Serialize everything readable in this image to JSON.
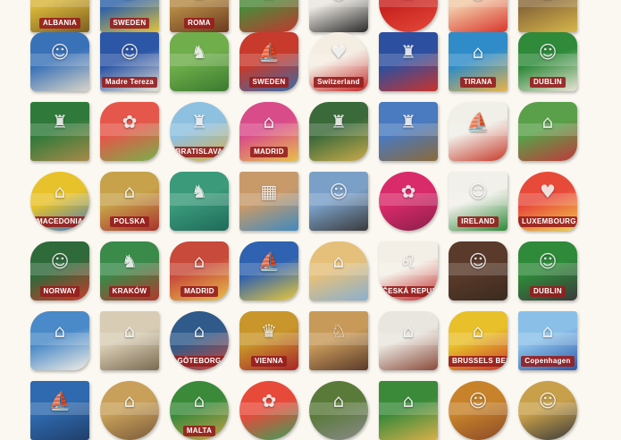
{
  "magnets": [
    {
      "label": "ALBANIA",
      "colors": [
        "#d8b43a",
        "#7a5f20"
      ],
      "shape": "rect",
      "icon": "flag"
    },
    {
      "label": "SWEDEN",
      "colors": [
        "#2e62a8",
        "#e1c33b"
      ],
      "shape": "rect",
      "icon": "castle"
    },
    {
      "label": "ROMA",
      "colors": [
        "#b58a45",
        "#6b3a1f"
      ],
      "shape": "rect",
      "icon": "colosseum"
    },
    {
      "label": "",
      "colors": [
        "#4c8a3a",
        "#c2372f"
      ],
      "shape": "blob",
      "icon": "castle"
    },
    {
      "label": "",
      "colors": [
        "#e9e5df",
        "#2a2a2a"
      ],
      "shape": "fig",
      "icon": "figure"
    },
    {
      "label": "",
      "colors": [
        "#c8221f",
        "#e44b3a"
      ],
      "shape": "round",
      "icon": "flower"
    },
    {
      "label": "",
      "colors": [
        "#f2c9a6",
        "#d9352b"
      ],
      "shape": "fig",
      "icon": "figure"
    },
    {
      "label": "",
      "colors": [
        "#8a6a3a",
        "#d8b64a"
      ],
      "shape": "rect",
      "icon": "building"
    },
    {
      "label": "",
      "colors": [
        "#3a72b8",
        "#d8d4c8"
      ],
      "shape": "fig",
      "icon": "figure"
    },
    {
      "label": "Madre Tereza",
      "colors": [
        "#2c56a6",
        "#e5e0d2"
      ],
      "shape": "rect",
      "icon": "portrait"
    },
    {
      "label": "",
      "colors": [
        "#6fae4a",
        "#3b7a2f"
      ],
      "shape": "fig",
      "icon": "dragon"
    },
    {
      "label": "SWEDEN",
      "colors": [
        "#c73a2c",
        "#3a6ba8"
      ],
      "shape": "blob",
      "icon": "ship"
    },
    {
      "label": "Switzerland",
      "colors": [
        "#f4ede2",
        "#c52b2b"
      ],
      "shape": "heart",
      "icon": "heart"
    },
    {
      "label": "",
      "colors": [
        "#2d4fa0",
        "#c9342c"
      ],
      "shape": "tall",
      "icon": "castle"
    },
    {
      "label": "TIRANA",
      "colors": [
        "#2f8cc8",
        "#e7b34a"
      ],
      "shape": "rect",
      "icon": "building"
    },
    {
      "label": "DUBLIN",
      "colors": [
        "#2f8a3a",
        "#e9e4d6"
      ],
      "shape": "fig",
      "icon": "figure"
    },
    {
      "label": "",
      "colors": [
        "#2f7a3a",
        "#a88a4a"
      ],
      "shape": "rect",
      "icon": "castle"
    },
    {
      "label": "",
      "colors": [
        "#e5574a",
        "#78b04a"
      ],
      "shape": "blob",
      "icon": "flower"
    },
    {
      "label": "BRATISLAVA",
      "colors": [
        "#8ec0e0",
        "#d8b04a"
      ],
      "shape": "round",
      "icon": "castle"
    },
    {
      "label": "MADRID",
      "colors": [
        "#d94c8a",
        "#e7c04a"
      ],
      "shape": "arch",
      "icon": "building"
    },
    {
      "label": "",
      "colors": [
        "#3a6a3a",
        "#c9aa4a"
      ],
      "shape": "blob",
      "icon": "castle"
    },
    {
      "label": "",
      "colors": [
        "#4a7ac0",
        "#8b6a3a"
      ],
      "shape": "tall",
      "icon": "castle"
    },
    {
      "label": "",
      "colors": [
        "#f0efe8",
        "#c83b2c"
      ],
      "shape": "blob",
      "icon": "ship"
    },
    {
      "label": "",
      "colors": [
        "#5aa04a",
        "#c03a3a"
      ],
      "shape": "blob",
      "icon": "building"
    },
    {
      "label": "MACEDONIA",
      "colors": [
        "#e8c22a",
        "#3f7bc0"
      ],
      "shape": "round",
      "icon": "building"
    },
    {
      "label": "POLSKA",
      "colors": [
        "#c7a24a",
        "#a8332c"
      ],
      "shape": "fig",
      "icon": "building"
    },
    {
      "label": "",
      "colors": [
        "#3a9a7a",
        "#1f6a5a"
      ],
      "shape": "fig",
      "icon": "dragon"
    },
    {
      "label": "",
      "colors": [
        "#c89a6a",
        "#3f8ac0"
      ],
      "shape": "rect",
      "icon": "map"
    },
    {
      "label": "",
      "colors": [
        "#7aa0c8",
        "#3a3a3a"
      ],
      "shape": "tall",
      "icon": "figure"
    },
    {
      "label": "",
      "colors": [
        "#d92a6a",
        "#8a1f4a"
      ],
      "shape": "round",
      "icon": "flower"
    },
    {
      "label": "IRELAND",
      "colors": [
        "#f2f0ea",
        "#2f8a3a"
      ],
      "shape": "tall",
      "icon": "figure"
    },
    {
      "label": "LUXEMBOURG",
      "colors": [
        "#e84a3a",
        "#f0d04a"
      ],
      "shape": "heart",
      "icon": "heart"
    },
    {
      "label": "NORWAY",
      "colors": [
        "#2f6a3a",
        "#c83b2c"
      ],
      "shape": "blob",
      "icon": "figure"
    },
    {
      "label": "KRAKÓW",
      "colors": [
        "#3a8a4a",
        "#b03a2c"
      ],
      "shape": "fig",
      "icon": "dragon"
    },
    {
      "label": "MADRID",
      "colors": [
        "#c84a3a",
        "#e7c04a"
      ],
      "shape": "blob",
      "icon": "building"
    },
    {
      "label": "",
      "colors": [
        "#2f62b0",
        "#e8c83a"
      ],
      "shape": "blob",
      "icon": "ship"
    },
    {
      "label": "",
      "colors": [
        "#e5c07a",
        "#8ab0d0"
      ],
      "shape": "arch",
      "icon": "building"
    },
    {
      "label": "ČESKÁ REPUBLIKA",
      "colors": [
        "#f3efe6",
        "#c12b2b"
      ],
      "shape": "shield",
      "icon": "lion"
    },
    {
      "label": "",
      "colors": [
        "#5a3a2a",
        "#3a2a1f"
      ],
      "shape": "fig",
      "icon": "figure"
    },
    {
      "label": "DUBLIN",
      "colors": [
        "#2f8a3a",
        "#3a3a3a"
      ],
      "shape": "fig",
      "icon": "figure"
    },
    {
      "label": "",
      "colors": [
        "#4a8ac8",
        "#f0ede4"
      ],
      "shape": "blob",
      "icon": "building"
    },
    {
      "label": "",
      "colors": [
        "#d8cdb4",
        "#7a6a52"
      ],
      "shape": "rect",
      "icon": "building"
    },
    {
      "label": "GÖTEBORG",
      "colors": [
        "#2f5a8a",
        "#c84a3a"
      ],
      "shape": "round",
      "icon": "building"
    },
    {
      "label": "VIENNA",
      "colors": [
        "#c8962a",
        "#a8242a"
      ],
      "shape": "fig",
      "icon": "crown"
    },
    {
      "label": "",
      "colors": [
        "#c89a5a",
        "#5a3a2a"
      ],
      "shape": "rect",
      "icon": "horse"
    },
    {
      "label": "",
      "colors": [
        "#e9e6df",
        "#8a4a3a"
      ],
      "shape": "fig",
      "icon": "building"
    },
    {
      "label": "BRUSSELS BELGIUM",
      "colors": [
        "#e8c02a",
        "#c83b2c"
      ],
      "shape": "blob",
      "icon": "building"
    },
    {
      "label": "Copenhagen",
      "colors": [
        "#8ac0e8",
        "#2f5aa8"
      ],
      "shape": "rect",
      "icon": "building"
    },
    {
      "label": "",
      "colors": [
        "#2f6ab0",
        "#1f3f6a"
      ],
      "shape": "rect",
      "icon": "ship"
    },
    {
      "label": "",
      "colors": [
        "#c8a05a",
        "#7a5a3a"
      ],
      "shape": "round",
      "icon": "building"
    },
    {
      "label": "MALTA",
      "colors": [
        "#3a8a3a",
        "#c8a04a"
      ],
      "shape": "round",
      "icon": "building"
    },
    {
      "label": "",
      "colors": [
        "#e84a3a",
        "#3aa05a"
      ],
      "shape": "round",
      "icon": "flower"
    },
    {
      "label": "",
      "colors": [
        "#5a7a3a",
        "#8a8a8a"
      ],
      "shape": "round",
      "icon": "building"
    },
    {
      "label": "",
      "colors": [
        "#3a8a3a",
        "#d8b04a"
      ],
      "shape": "rect",
      "icon": "building"
    },
    {
      "label": "",
      "colors": [
        "#c8832a",
        "#8a4a2a"
      ],
      "shape": "round",
      "icon": "figure"
    },
    {
      "label": "",
      "colors": [
        "#c8a04a",
        "#3a3a3a"
      ],
      "shape": "round",
      "icon": "figure"
    }
  ]
}
